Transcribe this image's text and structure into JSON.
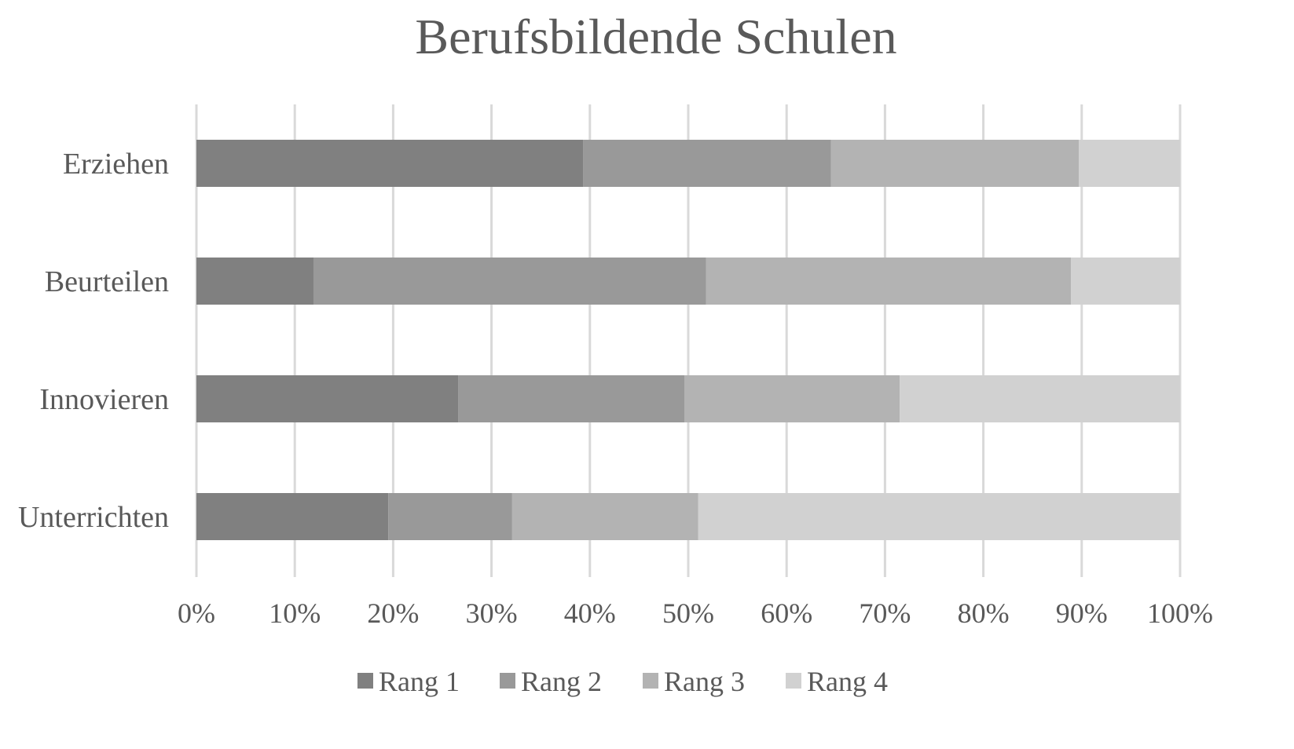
{
  "chart_data": {
    "type": "bar",
    "orientation": "horizontal",
    "stacked": "percent",
    "title": "Berufsbildende Schulen",
    "xlabel": "",
    "ylabel": "",
    "xlim": [
      0,
      100
    ],
    "grid": true,
    "legend_position": "bottom",
    "categories": [
      "Erziehen",
      "Beurteilen",
      "Innovieren",
      "Unterrichten"
    ],
    "ticks": [
      "0%",
      "10%",
      "20%",
      "30%",
      "40%",
      "50%",
      "60%",
      "70%",
      "80%",
      "90%",
      "100%"
    ],
    "series": [
      {
        "name": "Rang 1",
        "color": "#808080",
        "values": [
          39.3,
          11.9,
          26.6,
          19.5
        ]
      },
      {
        "name": "Rang 2",
        "color": "#999999",
        "values": [
          25.2,
          39.9,
          23.0,
          12.6
        ]
      },
      {
        "name": "Rang 3",
        "color": "#b3b3b3",
        "values": [
          25.2,
          37.1,
          21.9,
          18.9
        ]
      },
      {
        "name": "Rang 4",
        "color": "#d1d1d1",
        "values": [
          10.3,
          11.1,
          28.5,
          49.0
        ]
      }
    ]
  }
}
